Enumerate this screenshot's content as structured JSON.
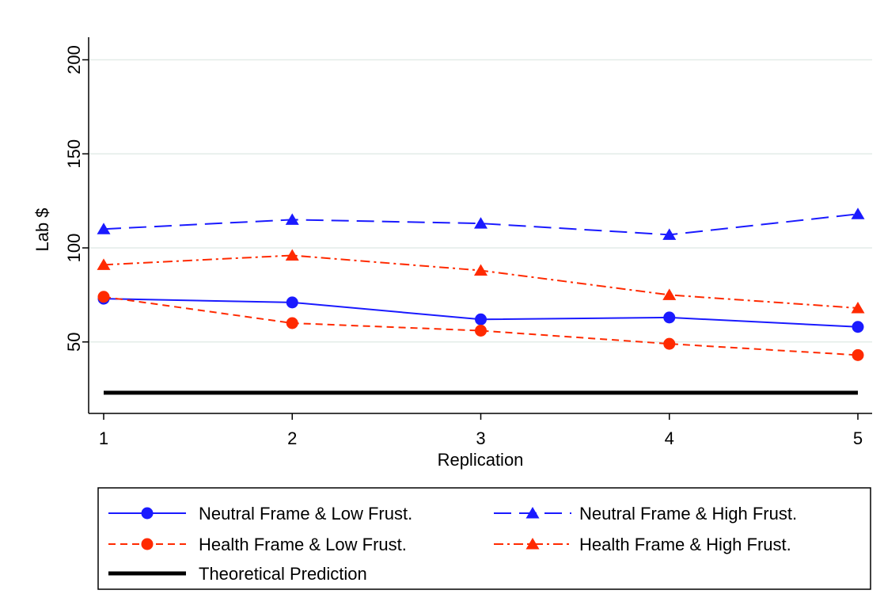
{
  "chart_data": {
    "type": "line",
    "title": "",
    "xlabel": "Replication",
    "ylabel": "Lab $",
    "x": [
      1,
      2,
      3,
      4,
      5
    ],
    "xticks": [
      "1",
      "2",
      "3",
      "4",
      "5"
    ],
    "yticks": [
      "50",
      "100",
      "150",
      "200"
    ],
    "xlim": [
      1,
      5
    ],
    "ylim": [
      12,
      212
    ],
    "grid": "horizontal",
    "legend_position": "bottom",
    "series": [
      {
        "name": "Neutral Frame & Low Frust.",
        "values": [
          73,
          71,
          62,
          63,
          58
        ],
        "color": "#1a1aff",
        "marker": "circle",
        "dash": "solid"
      },
      {
        "name": "Neutral Frame & High Frust.",
        "values": [
          110,
          115,
          113,
          107,
          118
        ],
        "color": "#1a1aff",
        "marker": "triangle",
        "dash": "longdash"
      },
      {
        "name": "Health Frame & Low Frust.",
        "values": [
          74,
          60,
          56,
          49,
          43
        ],
        "color": "#ff2a00",
        "marker": "circle",
        "dash": "shortdash"
      },
      {
        "name": "Health Frame & High Frust.",
        "values": [
          91,
          96,
          88,
          75,
          68
        ],
        "color": "#ff2a00",
        "marker": "triangle",
        "dash": "dashdot"
      },
      {
        "name": "Theoretical Prediction",
        "values": [
          23,
          23,
          23,
          23,
          23
        ],
        "color": "#000000",
        "marker": "none",
        "dash": "solid"
      }
    ]
  }
}
